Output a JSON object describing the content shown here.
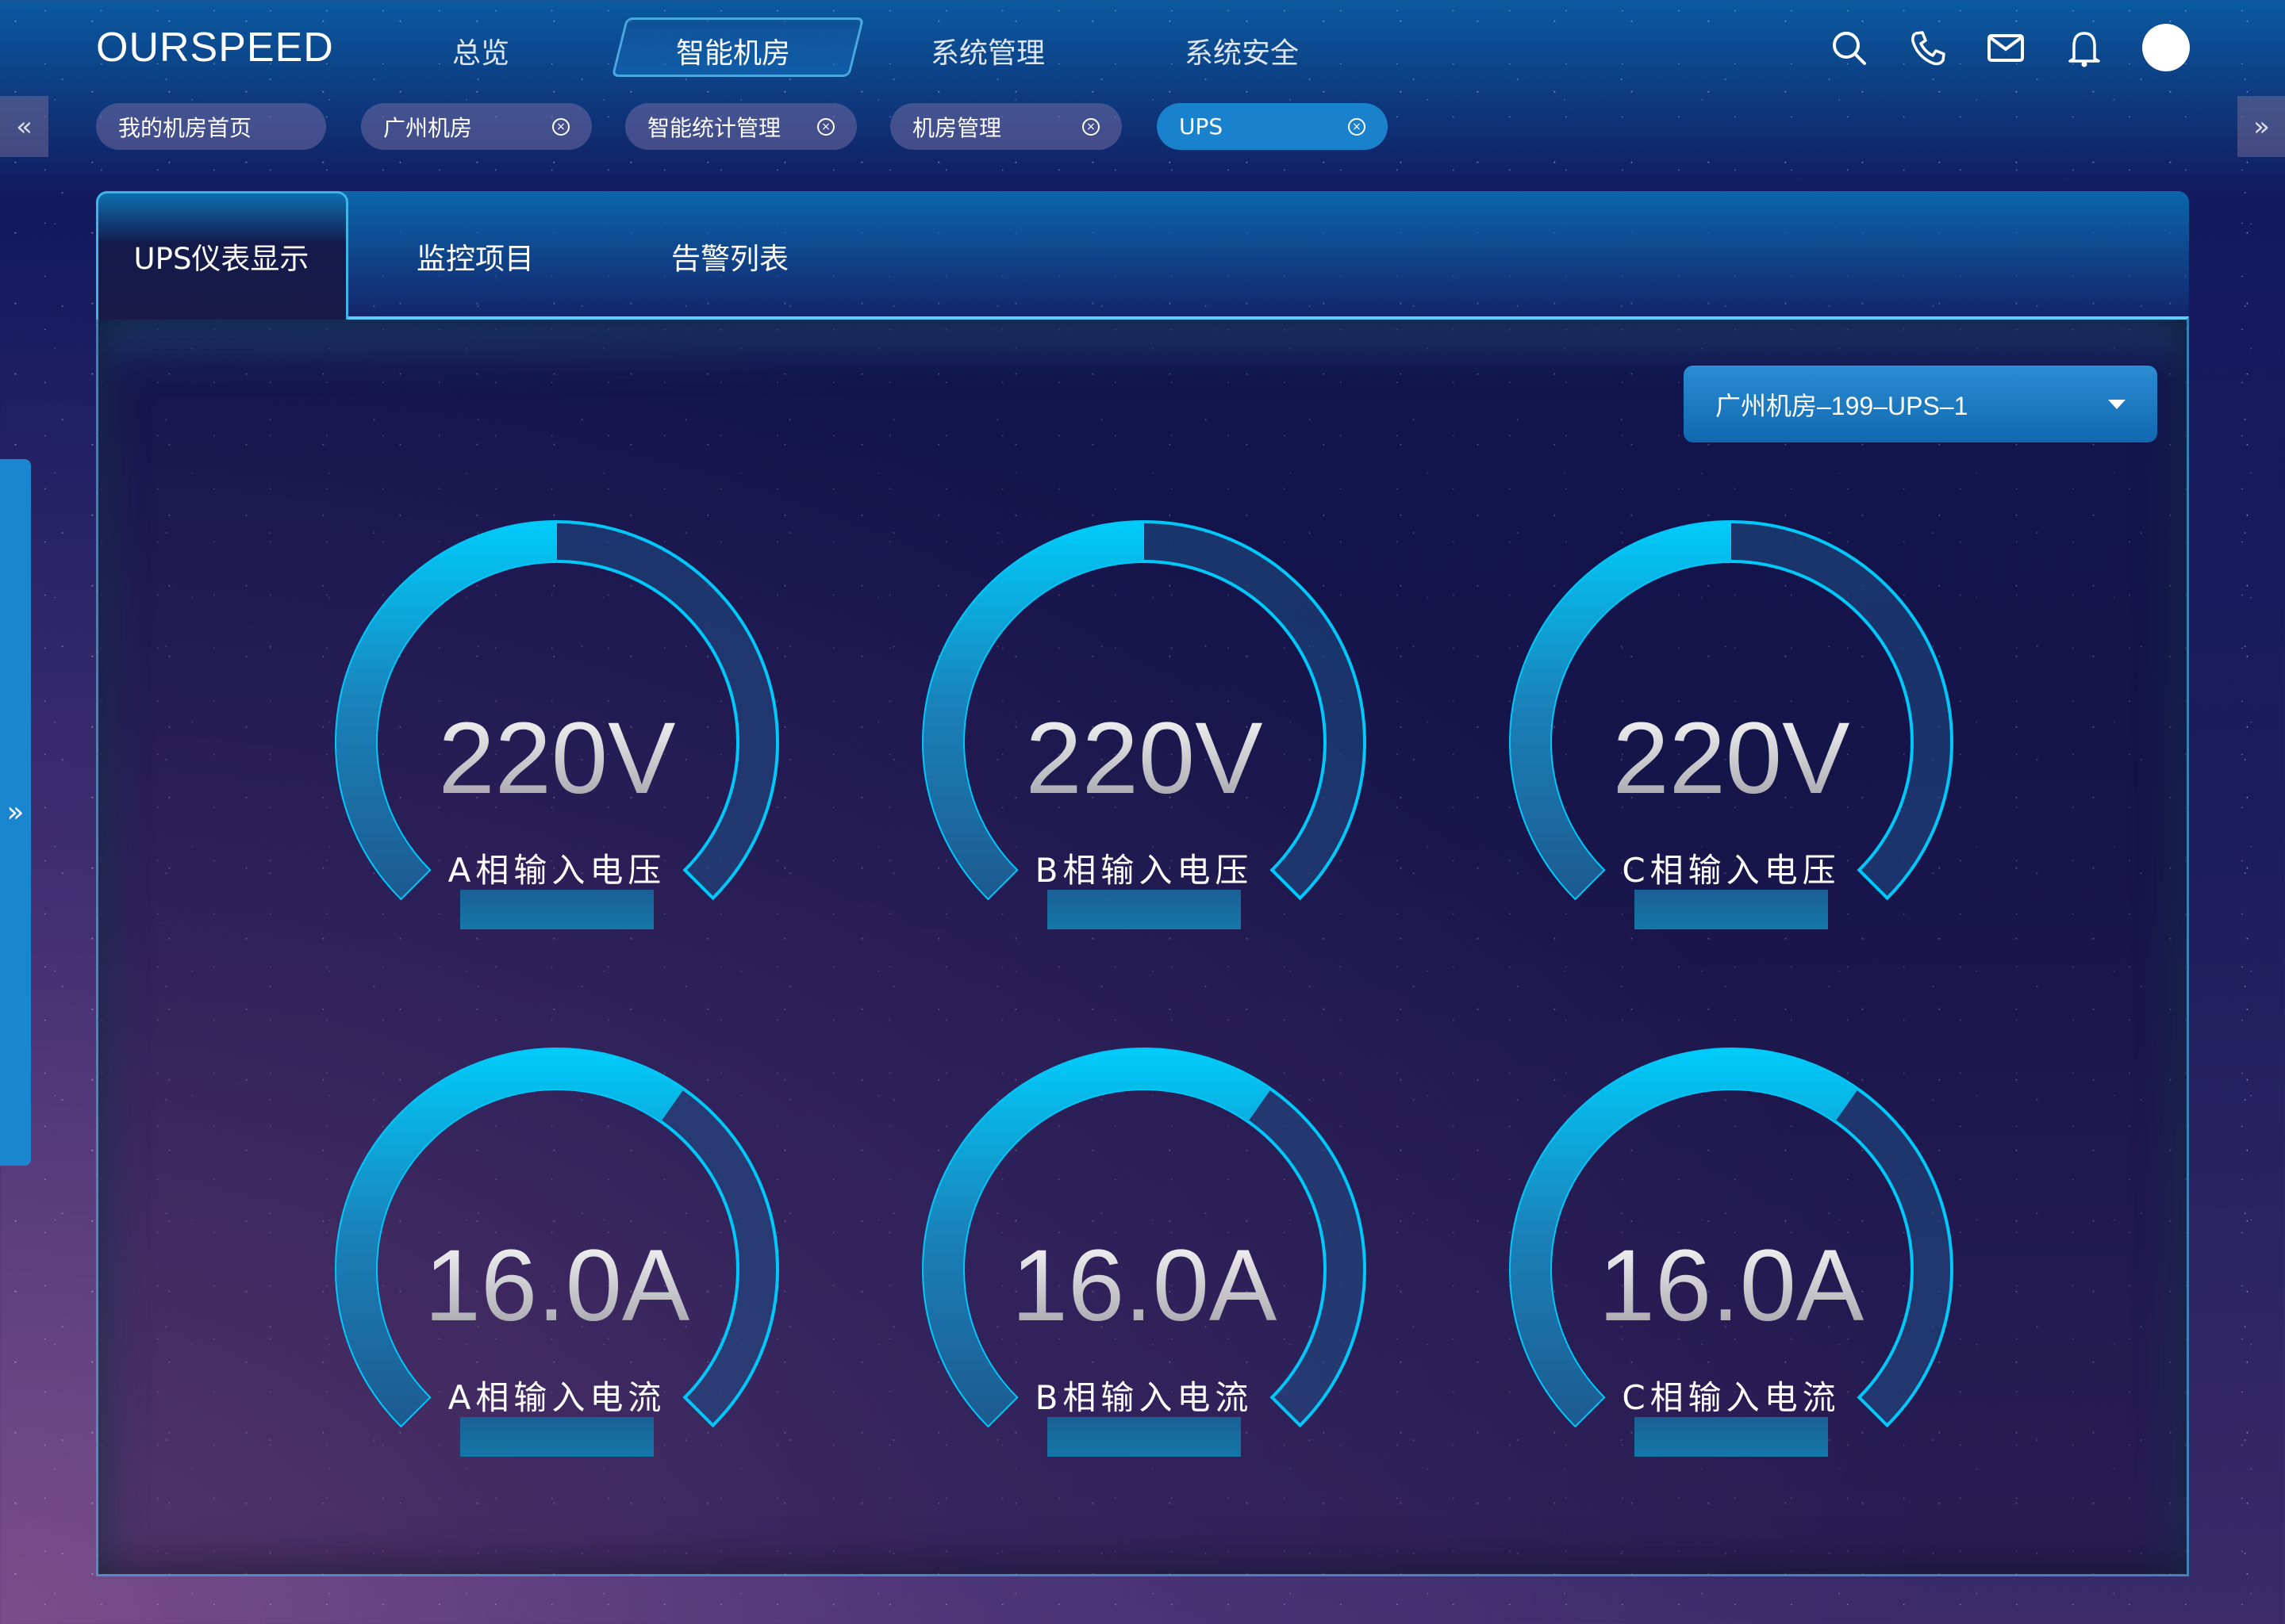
{
  "header": {
    "logo": "OURSPEED",
    "nav": [
      {
        "label": "总览"
      },
      {
        "label": "智能机房",
        "active": true
      },
      {
        "label": "系统管理"
      },
      {
        "label": "系统安全"
      }
    ],
    "icons": [
      "search-icon",
      "phone-icon",
      "mail-icon",
      "bell-icon",
      "avatar"
    ]
  },
  "tabs": [
    {
      "label": "我的机房首页",
      "closable": false
    },
    {
      "label": "广州机房",
      "closable": true
    },
    {
      "label": "智能统计管理",
      "closable": true
    },
    {
      "label": "机房管理",
      "closable": true
    },
    {
      "label": "UPS",
      "closable": true,
      "active": true
    }
  ],
  "tab_scroll": {
    "left": "«",
    "right": "»"
  },
  "side_handle": "»",
  "close_glyph": "×",
  "panel": {
    "tabs": [
      {
        "label": "UPS仪表显示",
        "active": true
      },
      {
        "label": "监控项目"
      },
      {
        "label": "告警列表"
      }
    ],
    "device_select": {
      "value": "广州机房–199–UPS–1"
    }
  },
  "gauges": [
    {
      "value": "220V",
      "label": "A相输入电压",
      "fill": 0.5
    },
    {
      "value": "220V",
      "label": "B相输入电压",
      "fill": 0.5
    },
    {
      "value": "220V",
      "label": "C相输入电压",
      "fill": 0.5
    },
    {
      "value": "16.0A",
      "label": "A相输入电流",
      "fill": 0.63
    },
    {
      "value": "16.0A",
      "label": "B相输入电流",
      "fill": 0.63
    },
    {
      "value": "16.0A",
      "label": "C相输入电流",
      "fill": 0.63
    }
  ],
  "colors": {
    "accent": "#00c8f8",
    "track": "#1f4f86",
    "tab_active": "#1a82cc"
  }
}
